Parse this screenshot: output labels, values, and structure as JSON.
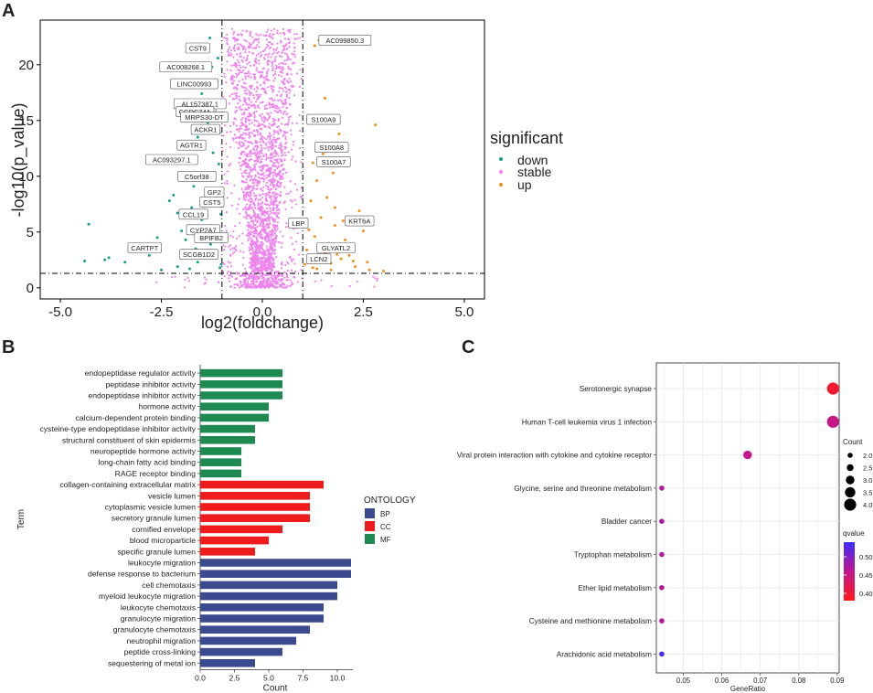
{
  "panels": {
    "a": "A",
    "b": "B",
    "c": "C"
  },
  "colors": {
    "down": "#1a9e8f",
    "stable": "#ee82ee",
    "up": "#f28e1c",
    "bp": "#3b4a8f",
    "cc": "#ee1c1c",
    "mf": "#1e8a52",
    "q_low": "#ff1a1a",
    "q_high": "#3a2bff"
  },
  "chart_data": [
    {
      "type": "scatter",
      "name": "volcano",
      "xlabel": "log2(foldchange)",
      "ylabel": "-log10(p_value)",
      "xlim": [
        -5.5,
        5.5
      ],
      "ylim": [
        -1,
        24
      ],
      "xticks": [
        -5.0,
        -2.5,
        0.0,
        2.5,
        5.0
      ],
      "xtick_labels": [
        "-5.0",
        "-2.5",
        "0.0",
        "2.5",
        "5.0"
      ],
      "yticks": [
        0,
        5,
        10,
        15,
        20
      ],
      "ytick_labels": [
        "0",
        "5",
        "10",
        "15",
        "20"
      ],
      "thresholds": {
        "x": [
          -1,
          1
        ],
        "y": 1.3
      },
      "legend": {
        "title": "significant",
        "entries": [
          "down",
          "stable",
          "up"
        ]
      },
      "down_points": [
        [
          -4.3,
          5.7
        ],
        [
          -4.4,
          2.4
        ],
        [
          -3.9,
          2.5
        ],
        [
          -3.8,
          2.7
        ],
        [
          -3.4,
          2.3
        ],
        [
          -2.8,
          2.9
        ],
        [
          -2.6,
          4.5
        ],
        [
          -2.3,
          7.8
        ],
        [
          -2.2,
          8.3
        ],
        [
          -2.1,
          6.7
        ],
        [
          -2.0,
          5.1
        ],
        [
          -1.9,
          4.3
        ],
        [
          -1.8,
          11.4
        ],
        [
          -1.75,
          7.2
        ],
        [
          -1.7,
          9.1
        ],
        [
          -1.65,
          3.5
        ],
        [
          -1.6,
          13.5
        ],
        [
          -1.55,
          10.2
        ],
        [
          -1.5,
          6.1
        ],
        [
          -1.45,
          12.5
        ],
        [
          -1.4,
          8.7
        ],
        [
          -1.35,
          14.8
        ],
        [
          -1.3,
          5.3
        ],
        [
          -1.28,
          3.9
        ],
        [
          -1.25,
          9.8
        ],
        [
          -1.22,
          12.1
        ],
        [
          -1.2,
          16.2
        ],
        [
          -1.18,
          7.5
        ],
        [
          -1.15,
          4.6
        ],
        [
          -1.12,
          18.5
        ],
        [
          -1.1,
          20.6
        ],
        [
          -1.08,
          11.1
        ],
        [
          -1.06,
          13.9
        ],
        [
          -1.04,
          8.4
        ],
        [
          -1.03,
          6.6
        ],
        [
          -1.02,
          2.1
        ],
        [
          -1.5,
          17.4
        ],
        [
          -1.3,
          22.4
        ],
        [
          -1.25,
          19.8
        ],
        [
          -2.1,
          1.9
        ],
        [
          -1.8,
          1.7
        ],
        [
          -1.6,
          2.3
        ],
        [
          -1.4,
          3.1
        ],
        [
          -1.15,
          2.8
        ],
        [
          -1.05,
          1.8
        ],
        [
          -2.5,
          1.6
        ]
      ],
      "up_points": [
        [
          1.05,
          2.1
        ],
        [
          1.1,
          3.4
        ],
        [
          1.15,
          5.2
        ],
        [
          1.2,
          7.8
        ],
        [
          1.25,
          1.8
        ],
        [
          1.3,
          4.6
        ],
        [
          1.35,
          9.6
        ],
        [
          1.4,
          2.5
        ],
        [
          1.45,
          6.3
        ],
        [
          1.5,
          12.0
        ],
        [
          1.55,
          3.1
        ],
        [
          1.6,
          8.1
        ],
        [
          1.65,
          4.0
        ],
        [
          1.7,
          2.2
        ],
        [
          1.75,
          10.3
        ],
        [
          1.8,
          5.6
        ],
        [
          1.85,
          3.0
        ],
        [
          1.9,
          13.8
        ],
        [
          1.95,
          2.6
        ],
        [
          2.0,
          6.0
        ],
        [
          2.05,
          4.3
        ],
        [
          2.1,
          5.8
        ],
        [
          2.15,
          2.9
        ],
        [
          2.2,
          3.6
        ],
        [
          2.3,
          1.9
        ],
        [
          2.5,
          5.1
        ],
        [
          2.6,
          2.3
        ],
        [
          2.8,
          14.6
        ],
        [
          2.65,
          1.6
        ],
        [
          3.0,
          1.5
        ],
        [
          1.4,
          22.2
        ],
        [
          1.3,
          21.7
        ],
        [
          1.55,
          17.0
        ],
        [
          1.12,
          15.1
        ],
        [
          1.25,
          11.2
        ],
        [
          1.8,
          7.2
        ],
        [
          2.4,
          6.9
        ],
        [
          1.7,
          1.6
        ],
        [
          2.25,
          2.4
        ],
        [
          1.35,
          1.7
        ]
      ],
      "gene_labels": [
        {
          "text": "AC099850.3",
          "x": 1.4,
          "y": 22.2
        },
        {
          "text": "AC008268.1",
          "x": -1.25,
          "y": 19.8
        },
        {
          "text": "CST9",
          "x": -1.3,
          "y": 21.5
        },
        {
          "text": "LINC00993",
          "x": -1.1,
          "y": 18.3
        },
        {
          "text": "SCUBE2",
          "x": -1.15,
          "y": 16.2
        },
        {
          "text": "AL157387.1",
          "x": -0.9,
          "y": 16.5
        },
        {
          "text": "CCDC74A",
          "x": -1.2,
          "y": 15.8
        },
        {
          "text": "MRPS30-DT",
          "x": -0.85,
          "y": 15.3
        },
        {
          "text": "ACKR1",
          "x": -1.05,
          "y": 14.2
        },
        {
          "text": "S100A9",
          "x": 1.1,
          "y": 15.1
        },
        {
          "text": "AGTR1",
          "x": -1.4,
          "y": 12.8
        },
        {
          "text": "S100A8",
          "x": 1.3,
          "y": 12.6
        },
        {
          "text": "AC093297.1",
          "x": -1.6,
          "y": 11.5
        },
        {
          "text": "S100A7",
          "x": 1.35,
          "y": 11.3
        },
        {
          "text": "C5orf38",
          "x": -1.15,
          "y": 10.0
        },
        {
          "text": "GP2",
          "x": -0.95,
          "y": 8.6
        },
        {
          "text": "CST5",
          "x": -0.95,
          "y": 7.7
        },
        {
          "text": "CCL19",
          "x": -1.35,
          "y": 6.6
        },
        {
          "text": "KRT6A",
          "x": 2.05,
          "y": 6.0
        },
        {
          "text": "LBP",
          "x": 0.65,
          "y": 5.8
        },
        {
          "text": "CYP2A7",
          "x": -1.05,
          "y": 5.2
        },
        {
          "text": "BPIFB2",
          "x": -0.85,
          "y": 4.5
        },
        {
          "text": "CARTPT",
          "x": -2.5,
          "y": 3.6
        },
        {
          "text": "GLYATL2",
          "x": 1.35,
          "y": 3.6
        },
        {
          "text": "SCGB1D2",
          "x": -1.1,
          "y": 3.0
        },
        {
          "text": "LCN2",
          "x": 1.1,
          "y": 2.6
        }
      ]
    },
    {
      "type": "bar",
      "orientation": "horizontal",
      "name": "go_enrichment",
      "xlabel": "Count",
      "ylabel": "Term",
      "xlim": [
        0,
        11
      ],
      "xticks": [
        0.0,
        2.5,
        5.0,
        7.5,
        10.0
      ],
      "xtick_labels": [
        "0.0",
        "2.5",
        "5.0",
        "7.5",
        "10.0"
      ],
      "legend": {
        "title": "ONTOLOGY",
        "entries": [
          "BP",
          "CC",
          "MF"
        ]
      },
      "categories": [
        "endopeptidase regulator activity",
        "peptidase inhibitor activity",
        "endopeptidase inhibitor activity",
        "hormone activity",
        "calcium-dependent protein binding",
        "cysteine-type endopeptidase inhibitor activity",
        "structural constituent of skin epidermis",
        "neuropeptide hormone activity",
        "long-chain fatty acid binding",
        "RAGE receptor binding",
        "collagen-containing extracellular matrix",
        "vesicle lumen",
        "cytoplasmic vesicle lumen",
        "secretory granule lumen",
        "cornified envelope",
        "blood microparticle",
        "specific granule lumen",
        "leukocyte migration",
        "defense response to bacterium",
        "cell chemotaxis",
        "myeloid leukocyte migration",
        "leukocyte chemotaxis",
        "granulocyte migration",
        "granulocyte chemotaxis",
        "neutrophil migration",
        "peptide cross-linking",
        "sequestering of metal ion"
      ],
      "values": [
        6,
        6,
        6,
        5,
        5,
        4,
        4,
        3,
        3,
        3,
        9,
        8,
        8,
        8,
        6,
        5,
        4,
        11,
        11,
        10,
        10,
        9,
        9,
        8,
        7,
        6,
        4
      ],
      "groups": [
        "MF",
        "MF",
        "MF",
        "MF",
        "MF",
        "MF",
        "MF",
        "MF",
        "MF",
        "MF",
        "CC",
        "CC",
        "CC",
        "CC",
        "CC",
        "CC",
        "CC",
        "BP",
        "BP",
        "BP",
        "BP",
        "BP",
        "BP",
        "BP",
        "BP",
        "BP",
        "BP"
      ]
    },
    {
      "type": "scatter",
      "name": "kegg_dotplot",
      "xlabel": "GeneRatio",
      "xlim": [
        0.043,
        0.0905
      ],
      "xticks": [
        0.05,
        0.06,
        0.07,
        0.08,
        0.09
      ],
      "xtick_labels": [
        "0.05",
        "0.06",
        "0.07",
        "0.08",
        "0.09"
      ],
      "categories": [
        "Serotonergic synapse",
        "Human T-cell leukemia virus 1 infection",
        "Viral protein interaction with cytokine and cytokine receptor",
        "Glycine, serine and threonine metabolism",
        "Bladder cancer",
        "Tryptophan metabolism",
        "Ether lipid metabolism",
        "Cysteine and methionine metabolism",
        "Arachidonic acid metabolism"
      ],
      "gene_ratio": [
        0.0889,
        0.0889,
        0.0667,
        0.0444,
        0.0444,
        0.0444,
        0.0444,
        0.0444,
        0.0444
      ],
      "count": [
        4,
        4,
        3,
        2,
        2,
        2,
        2,
        2,
        2
      ],
      "qvalue": [
        0.395,
        0.455,
        0.46,
        0.47,
        0.47,
        0.47,
        0.47,
        0.47,
        0.535
      ],
      "size_legend": {
        "title": "Count",
        "labels": [
          "2.0",
          "2.5",
          "3.0",
          "3.5",
          "4.0"
        ],
        "values": [
          2.0,
          2.5,
          3.0,
          3.5,
          4.0
        ]
      },
      "color_legend": {
        "title": "qvalue",
        "labels": [
          "0.50",
          "0.45",
          "0.40"
        ],
        "values": [
          0.5,
          0.45,
          0.4
        ],
        "range": [
          0.38,
          0.54
        ]
      }
    }
  ]
}
